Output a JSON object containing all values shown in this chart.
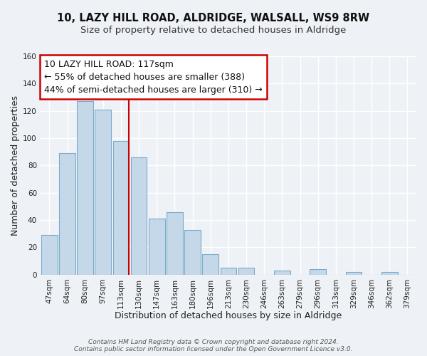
{
  "title": "10, LAZY HILL ROAD, ALDRIDGE, WALSALL, WS9 8RW",
  "subtitle": "Size of property relative to detached houses in Aldridge",
  "xlabel": "Distribution of detached houses by size in Aldridge",
  "ylabel": "Number of detached properties",
  "bar_labels": [
    "47sqm",
    "64sqm",
    "80sqm",
    "97sqm",
    "113sqm",
    "130sqm",
    "147sqm",
    "163sqm",
    "180sqm",
    "196sqm",
    "213sqm",
    "230sqm",
    "246sqm",
    "263sqm",
    "279sqm",
    "296sqm",
    "313sqm",
    "329sqm",
    "346sqm",
    "362sqm",
    "379sqm"
  ],
  "bar_values": [
    29,
    89,
    127,
    121,
    98,
    86,
    41,
    46,
    33,
    15,
    5,
    5,
    0,
    3,
    0,
    4,
    0,
    2,
    0,
    2,
    0
  ],
  "bar_color": "#c5d8ea",
  "bar_edge_color": "#7baac8",
  "vline_color": "#cc0000",
  "vline_x_index": 4,
  "ylim": [
    0,
    160
  ],
  "yticks": [
    0,
    20,
    40,
    60,
    80,
    100,
    120,
    140,
    160
  ],
  "annotation_line1": "10 LAZY HILL ROAD: 117sqm",
  "annotation_line2": "← 55% of detached houses are smaller (388)",
  "annotation_line3": "44% of semi-detached houses are larger (310) →",
  "footer_text": "Contains HM Land Registry data © Crown copyright and database right 2024.\nContains public sector information licensed under the Open Government Licence v3.0.",
  "bg_color": "#eef2f7",
  "grid_color": "#ffffff",
  "title_fontsize": 10.5,
  "subtitle_fontsize": 9.5,
  "label_fontsize": 9,
  "tick_fontsize": 7.5,
  "annotation_fontsize": 9,
  "footer_fontsize": 6.5
}
